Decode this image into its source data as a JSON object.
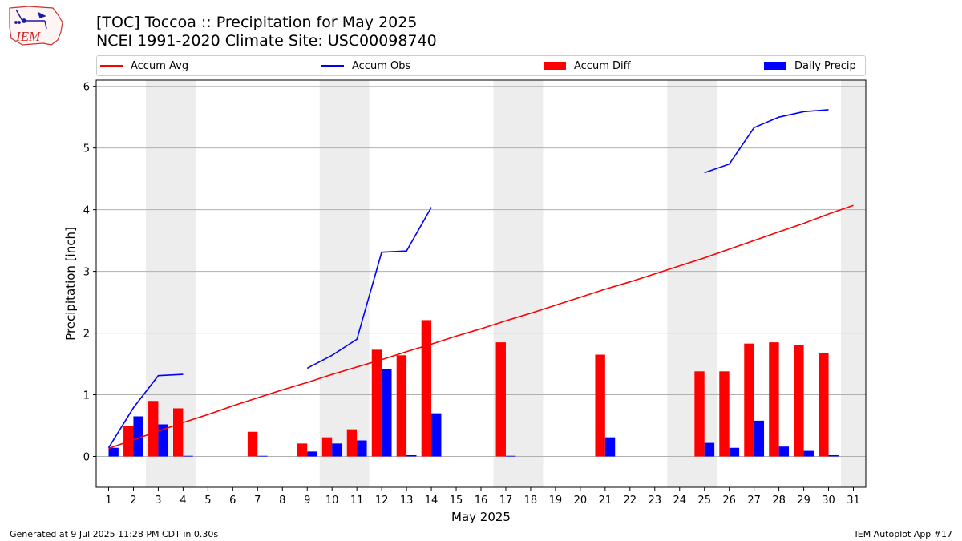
{
  "logo": {
    "text": "IEM"
  },
  "titles": {
    "line1": "[TOC] Toccoa :: Precipitation for May 2025",
    "line2": "NCEI 1991-2020 Climate Site: USC00098740"
  },
  "legend": {
    "accum_avg": "Accum Avg",
    "accum_obs": "Accum Obs",
    "accum_diff": "Accum Diff",
    "daily_precip": "Daily Precip"
  },
  "colors": {
    "accum_avg": "#ff0000",
    "accum_obs": "#0000ff",
    "accum_diff": "#ff0000",
    "daily_precip": "#0000ff",
    "weekend_shade": "#ededed",
    "grid": "#b0b0b0"
  },
  "footer": {
    "left": "Generated at 9 Jul 2025 11:28 PM CDT in 0.30s",
    "right": "IEM Autoplot App #17"
  },
  "chart_data": {
    "type": "bar",
    "title": "[TOC] Toccoa :: Precipitation for May 2025",
    "subtitle": "NCEI 1991-2020 Climate Site: USC00098740",
    "xlabel": "May 2025",
    "ylabel": "Precipitation [inch]",
    "xlim": [
      0.5,
      31.5
    ],
    "ylim": [
      -0.5,
      6.1
    ],
    "yticks": [
      0,
      1,
      2,
      3,
      4,
      5,
      6
    ],
    "grid": "y",
    "legend_position": "top",
    "categories": [
      "1",
      "2",
      "3",
      "4",
      "5",
      "6",
      "7",
      "8",
      "9",
      "10",
      "11",
      "12",
      "13",
      "14",
      "15",
      "16",
      "17",
      "18",
      "19",
      "20",
      "21",
      "22",
      "23",
      "24",
      "25",
      "26",
      "27",
      "28",
      "29",
      "30",
      "31"
    ],
    "weekend_days": [
      [
        3,
        4
      ],
      [
        10,
        11
      ],
      [
        17,
        18
      ],
      [
        24,
        25
      ],
      [
        31,
        31
      ]
    ],
    "series": [
      {
        "name": "Accum Diff",
        "kind": "bar",
        "values": [
          0.0,
          0.5,
          0.9,
          0.78,
          0.0,
          0.0,
          0.4,
          0.0,
          0.21,
          0.31,
          0.44,
          1.73,
          1.64,
          2.21,
          0.0,
          0.0,
          1.85,
          0.0,
          0.0,
          0.0,
          1.65,
          0.0,
          0.0,
          0.0,
          1.38,
          1.38,
          1.83,
          1.85,
          1.81,
          1.68,
          null
        ]
      },
      {
        "name": "Daily Precip",
        "kind": "bar",
        "values": [
          0.14,
          0.65,
          0.52,
          0.01,
          0.0,
          0.0,
          0.01,
          0.0,
          0.08,
          0.21,
          0.26,
          1.41,
          0.02,
          0.7,
          0.0,
          0.0,
          0.01,
          0.0,
          0.0,
          0.0,
          0.31,
          0.0,
          0.0,
          0.0,
          0.22,
          0.14,
          0.58,
          0.16,
          0.09,
          0.02,
          null
        ]
      },
      {
        "name": "Accum Avg",
        "kind": "line",
        "values": [
          0.13,
          0.27,
          0.41,
          0.55,
          0.68,
          0.82,
          0.95,
          1.08,
          1.2,
          1.33,
          1.45,
          1.57,
          1.7,
          1.82,
          1.95,
          2.07,
          2.2,
          2.32,
          2.45,
          2.58,
          2.71,
          2.83,
          2.96,
          3.09,
          3.22,
          3.36,
          3.5,
          3.64,
          3.78,
          3.93,
          4.07
        ]
      },
      {
        "name": "Accum Obs",
        "kind": "line",
        "values": [
          0.14,
          0.79,
          1.31,
          1.33,
          null,
          null,
          null,
          null,
          1.43,
          1.64,
          1.9,
          3.31,
          3.33,
          4.04,
          null,
          null,
          null,
          null,
          null,
          null,
          null,
          null,
          null,
          null,
          4.6,
          4.74,
          5.33,
          5.5,
          5.59,
          5.62,
          null
        ]
      }
    ]
  }
}
